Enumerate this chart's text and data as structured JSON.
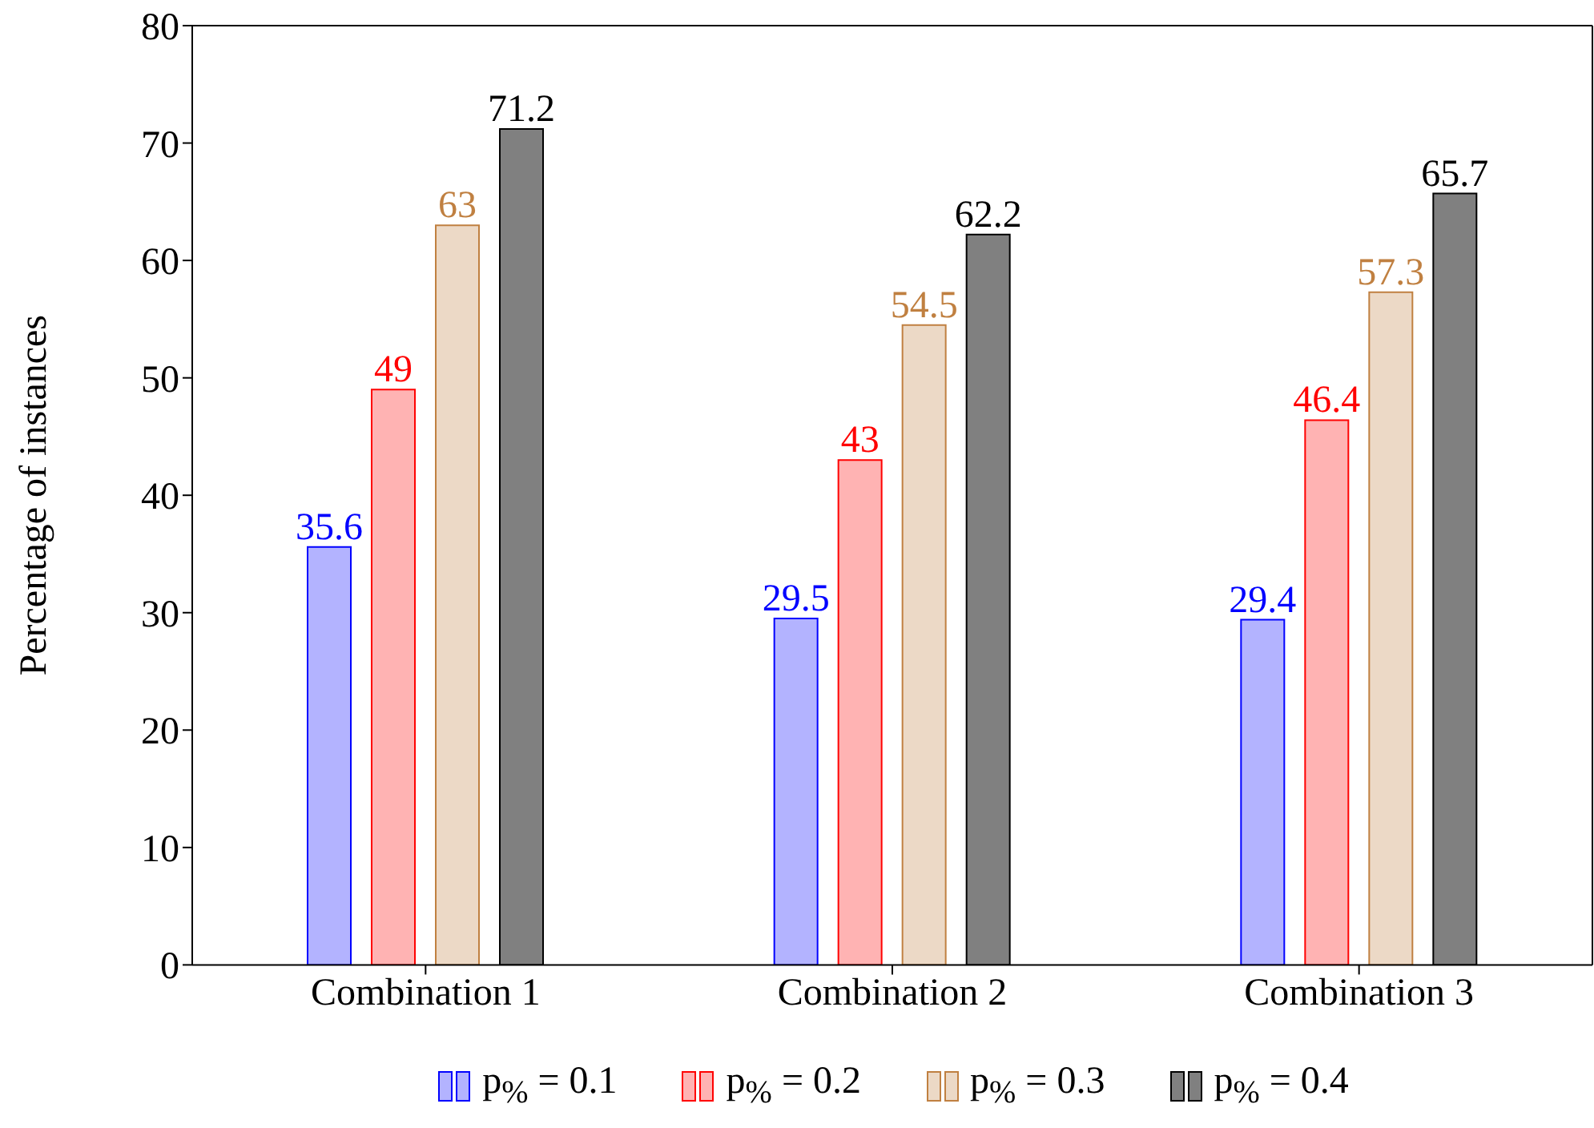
{
  "chart_data": {
    "type": "bar",
    "ylabel": "Percentage of instances",
    "categories": [
      "Combination 1",
      "Combination 2",
      "Combination 3"
    ],
    "series": [
      {
        "name": "p$_{%}$ = 0.1",
        "color": "#b3b3ff",
        "values": [
          35.6,
          29.5,
          29.4
        ]
      },
      {
        "name": "p$_{%}$ = 0.2",
        "color": "#ffb3b3",
        "values": [
          49,
          43,
          46.4
        ]
      },
      {
        "name": "p$_{%}$ = 0.3",
        "color": "#ecd9c6",
        "values": [
          63,
          54.5,
          57.3
        ]
      },
      {
        "name": "p$_{%}$ = 0.4",
        "color": "#808080",
        "values": [
          71.2,
          62.2,
          65.7
        ]
      }
    ],
    "ylim": [
      0,
      80
    ],
    "yticks": [
      0,
      10,
      20,
      30,
      40,
      50,
      60,
      70,
      80
    ],
    "data_labels": true,
    "grid": false,
    "legend": "bottom"
  }
}
